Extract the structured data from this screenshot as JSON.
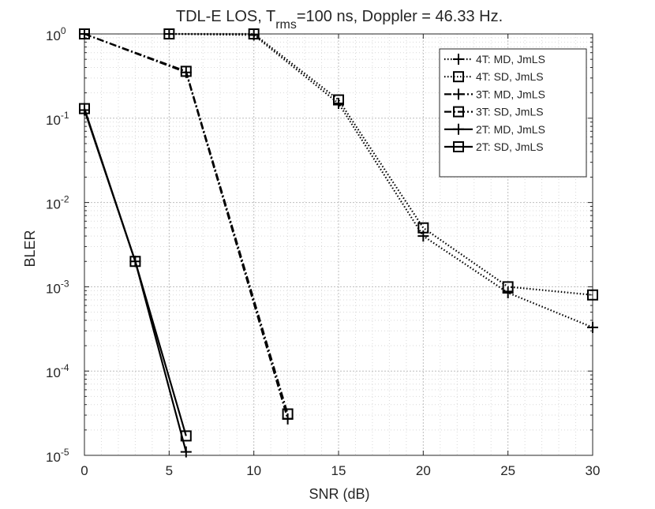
{
  "chart_data": {
    "type": "line",
    "title": {
      "prefix": "TDL-E LOS, T",
      "subscript": "rms",
      "suffix": "=100 ns, Doppler = 46.33 Hz."
    },
    "xlabel": "SNR (dB)",
    "ylabel": "BLER",
    "xscale": "linear",
    "yscale": "log",
    "xlim": [
      0,
      30
    ],
    "ylim": [
      1e-05,
      1
    ],
    "grid": true,
    "minor_grid": true,
    "legend_location": "top-right",
    "x_ticks": [
      0,
      5,
      10,
      15,
      20,
      25,
      30
    ],
    "y_ticks": [
      {
        "value": 1e-05,
        "base": "10",
        "exp": "-5"
      },
      {
        "value": 0.0001,
        "base": "10",
        "exp": "-4"
      },
      {
        "value": 0.001,
        "base": "10",
        "exp": "-3"
      },
      {
        "value": 0.01,
        "base": "10",
        "exp": "-2"
      },
      {
        "value": 0.1,
        "base": "10",
        "exp": "-1"
      },
      {
        "value": 1,
        "base": "10",
        "exp": "0"
      }
    ],
    "series": [
      {
        "name": "4T: MD, JmLS",
        "line_style": "dotted",
        "marker": "plus",
        "x": [
          5,
          10,
          15,
          20,
          25,
          30
        ],
        "y": [
          1.0,
          0.97,
          0.15,
          0.004,
          0.00085,
          0.00033
        ]
      },
      {
        "name": "4T: SD, JmLS",
        "line_style": "dotted",
        "marker": "square",
        "x": [
          5,
          10,
          15,
          20,
          25,
          30
        ],
        "y": [
          1.0,
          1.0,
          0.165,
          0.005,
          0.001,
          0.0008
        ]
      },
      {
        "name": "3T: MD, JmLS",
        "line_style": "dashdot",
        "marker": "plus",
        "x": [
          0,
          6,
          12
        ],
        "y": [
          1.0,
          0.35,
          2.7e-05
        ]
      },
      {
        "name": "3T: SD, JmLS",
        "line_style": "dashdot",
        "marker": "square",
        "x": [
          0,
          6,
          12
        ],
        "y": [
          1.0,
          0.36,
          3.1e-05
        ]
      },
      {
        "name": "2T: MD, JmLS",
        "line_style": "solid",
        "marker": "plus",
        "x": [
          0,
          3,
          6
        ],
        "y": [
          0.125,
          0.002,
          1.1e-05
        ]
      },
      {
        "name": "2T: SD, JmLS",
        "line_style": "solid",
        "marker": "square",
        "x": [
          0,
          3,
          6
        ],
        "y": [
          0.13,
          0.002,
          1.7e-05
        ]
      }
    ]
  }
}
